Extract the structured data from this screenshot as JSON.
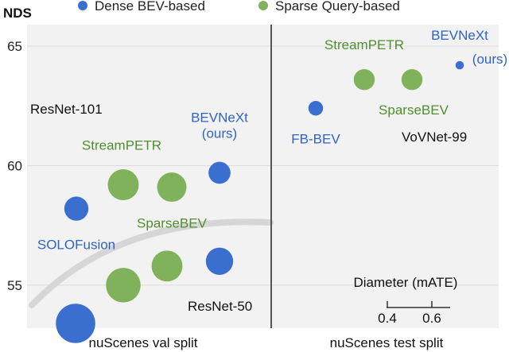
{
  "chart_data": {
    "type": "scatter",
    "ylabel": "NDS",
    "ylim": [
      53.2,
      65.9
    ],
    "yticks": [
      55,
      60,
      65
    ],
    "legend": {
      "placement": "top",
      "entries": [
        {
          "name": "Dense BEV-based",
          "color": "#3a6fd0"
        },
        {
          "name": "Sparse Query-based",
          "color": "#7fb25a"
        }
      ]
    },
    "panels": [
      {
        "xlabel": "nuScenes val split",
        "backbone_labels": [
          "ResNet-101",
          "ResNet-50"
        ],
        "points": [
          {
            "group": "Dense BEV-based",
            "nds": 53.4,
            "mate": 0.75
          },
          {
            "group": "Sparse Query-based",
            "nds": 55.0,
            "mate": 0.66
          },
          {
            "group": "Sparse Query-based",
            "nds": 55.8,
            "mate": 0.59
          },
          {
            "group": "Dense BEV-based",
            "nds": 56.0,
            "mate": 0.52
          },
          {
            "group": "Dense BEV-based",
            "nds": 58.2,
            "mate": 0.46,
            "label": "SOLOFusion"
          },
          {
            "group": "Sparse Query-based",
            "nds": 59.2,
            "mate": 0.59,
            "label": "StreamPETR"
          },
          {
            "group": "Sparse Query-based",
            "nds": 59.1,
            "mate": 0.56,
            "label": "SparseBEV"
          },
          {
            "group": "Dense BEV-based",
            "nds": 59.7,
            "mate": 0.42,
            "label": "BEVNeXt\n(ours)"
          }
        ]
      },
      {
        "xlabel": "nuScenes test split",
        "backbone_labels": [
          "VoVNet-99"
        ],
        "points": [
          {
            "group": "Dense BEV-based",
            "nds": 62.4,
            "mate": 0.28,
            "label": "FB-BEV"
          },
          {
            "group": "Sparse Query-based",
            "nds": 63.6,
            "mate": 0.4,
            "label": "StreamPETR"
          },
          {
            "group": "Sparse Query-based",
            "nds": 63.6,
            "mate": 0.4,
            "label": "SparseBEV"
          },
          {
            "group": "Dense BEV-based",
            "nds": 64.2,
            "mate": 0.16,
            "label": "BEVNeXt\n(ours)"
          }
        ]
      }
    ],
    "size_legend": {
      "title": "Diameter (mATE)",
      "ticks": [
        "0.4",
        "0.6"
      ]
    }
  }
}
